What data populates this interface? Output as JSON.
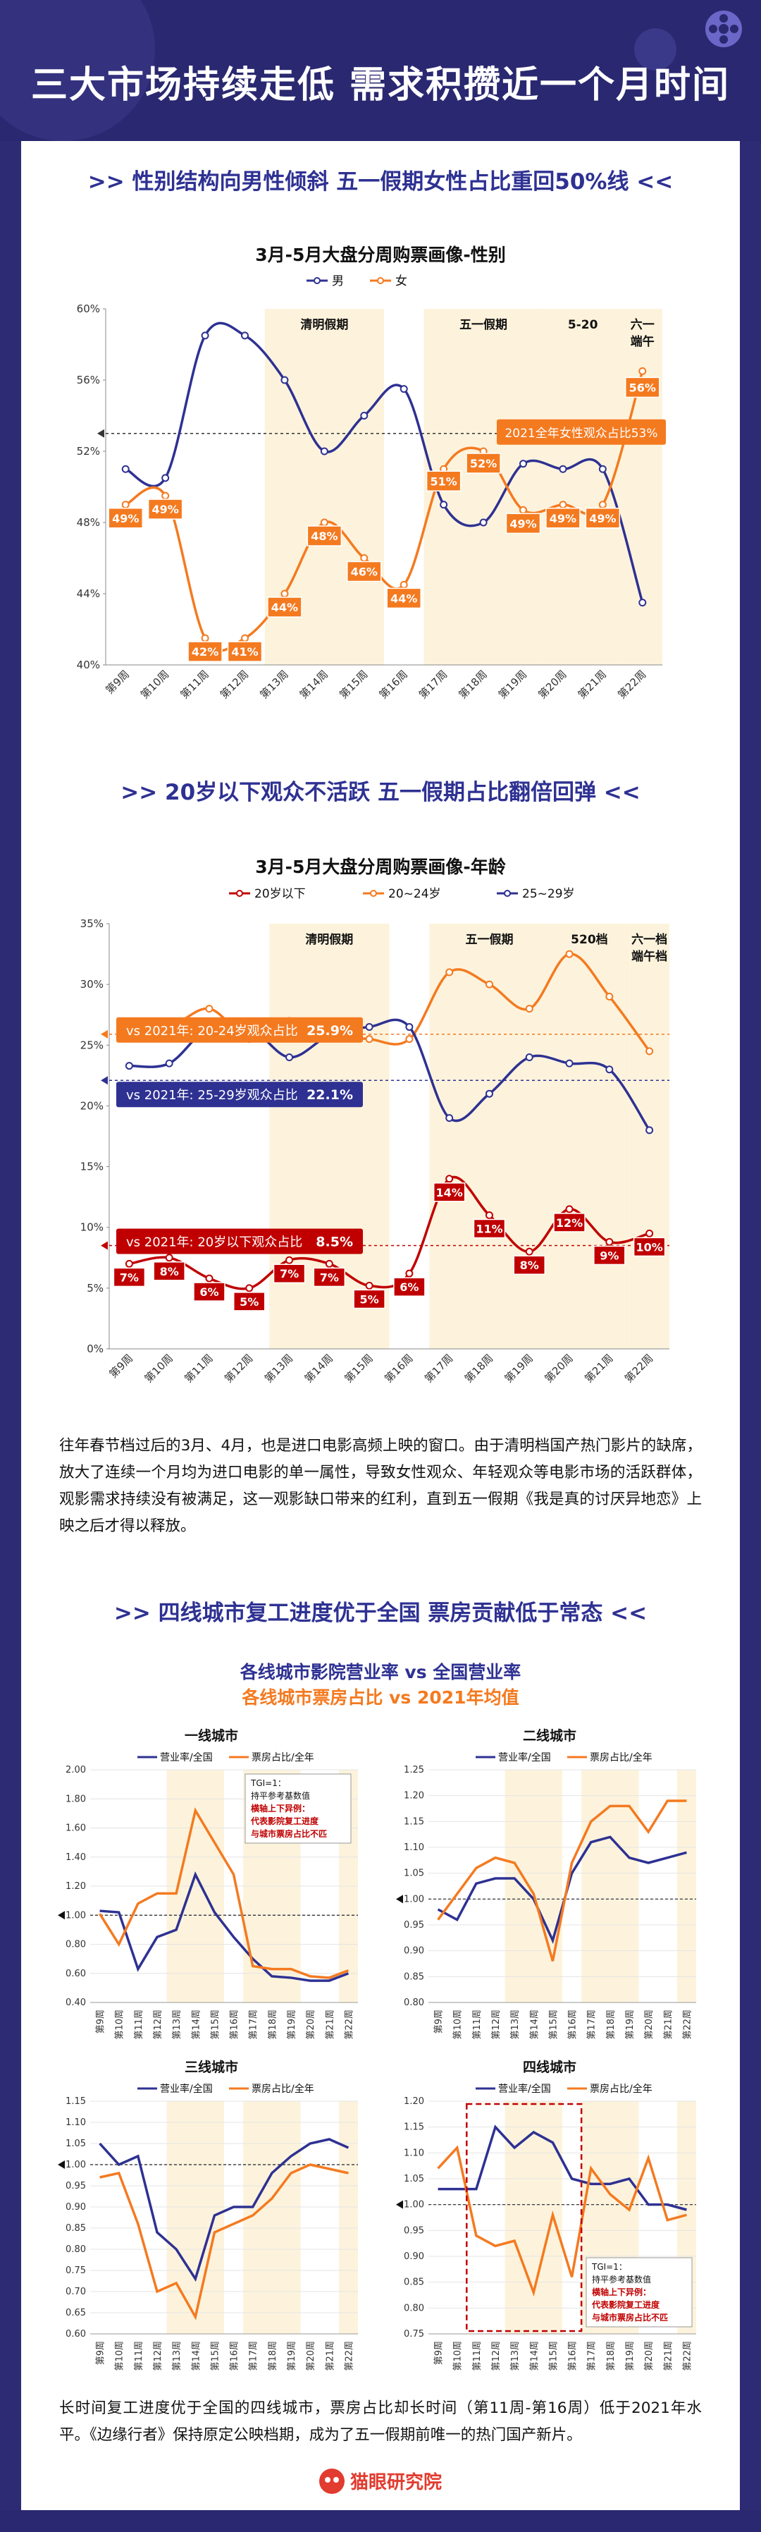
{
  "page_title": "三大市场持续走低 需求积攒近一个月时间",
  "sections": {
    "s1_title": ">> 性别结构向男性倾斜 五一假期女性占比重回50%线 <<",
    "s2_title": ">> 20岁以下观众不活跃 五一假期占比翻倍回弹 <<",
    "s3_title": ">> 四线城市复工进度优于全国 票房贡献低于常态 <<"
  },
  "paragraphs": {
    "p1": "往年春节档过后的3月、4月，也是进口电影高频上映的窗口。由于清明档国产热门影片的缺席，放大了连续一个月均为进口电影的单一属性，导致女性观众、年轻观众等电影市场的活跃群体，观影需求持续没有被满足，这一观影缺口带来的红利，直到五一假期《我是真的讨厌异地恋》上映之后才得以释放。",
    "p2": "长时间复工进度优于全国的四线城市，票房占比却长时间（第11周-第16周）低于2021年水平。《边缘行者》保持原定公映档期，成为了五一假期前唯一的热门国产新片。"
  },
  "multi_title_line1": "各线城市影院营业率 vs 全国营业率",
  "multi_title_line2": "各线城市票房占比 vs 2021年均值",
  "logo_text": "猫眼研究院",
  "colors": {
    "navy": "#2e3192",
    "orange": "#f47a20",
    "red": "#c00000",
    "holiday": "#fdf3dc"
  },
  "chart_data": [
    {
      "id": "gender",
      "type": "line",
      "title": "3月-5月大盘分周购票画像-性别",
      "categories": [
        "第9周",
        "第10周",
        "第11周",
        "第12周",
        "第13周",
        "第14周",
        "第15周",
        "第16周",
        "第17周",
        "第18周",
        "第19周",
        "第20周",
        "第21周",
        "第22周"
      ],
      "series": [
        {
          "name": "男",
          "color": "#2e3192",
          "values": [
            51,
            50.5,
            58.5,
            58.5,
            56,
            52,
            54,
            55.5,
            49,
            48,
            51.3,
            51,
            51,
            43.5
          ]
        },
        {
          "name": "女",
          "color": "#f47a20",
          "values": [
            49,
            49.5,
            41.5,
            41.5,
            44,
            48,
            46,
            44.5,
            51,
            52,
            48.7,
            49,
            49,
            56.5
          ]
        }
      ],
      "data_labels": [
        "49%",
        "49%",
        "42%",
        "41%",
        "44%",
        "48%",
        "46%",
        "44%",
        "51%",
        "52%",
        "49%",
        "49%",
        "49%",
        "56%"
      ],
      "ylim": [
        40,
        60
      ],
      "yticks": [
        "40%",
        "44%",
        "48%",
        "52%",
        "56%",
        "60%"
      ],
      "periods": [
        {
          "label": "清明假期",
          "from": 4,
          "to": 6
        },
        {
          "label": "五一假期",
          "from": 8,
          "to": 10
        },
        {
          "label": "5-20",
          "from": 11,
          "to": 12
        },
        {
          "label": "六一\n端午",
          "from": 13,
          "to": 13
        }
      ],
      "reference": {
        "value": 53,
        "label": "2021全年女性观众占比53%"
      }
    },
    {
      "id": "age",
      "type": "line",
      "title": "3月-5月大盘分周购票画像-年龄",
      "categories": [
        "第9周",
        "第10周",
        "第11周",
        "第12周",
        "第13周",
        "第14周",
        "第15周",
        "第16周",
        "第17周",
        "第18周",
        "第19周",
        "第20周",
        "第21周",
        "第22周"
      ],
      "series": [
        {
          "name": "20岁以下",
          "color": "#c00000",
          "values": [
            7,
            7.5,
            5.8,
            5,
            7.3,
            7,
            5.2,
            6.2,
            14,
            11,
            8,
            11.5,
            8.8,
            9.5
          ]
        },
        {
          "name": "20~24岁",
          "color": "#f47a20",
          "values": [
            26.5,
            26.5,
            28,
            25.5,
            27,
            26,
            25.5,
            25.5,
            31,
            30,
            28,
            32.5,
            29,
            24.5
          ]
        },
        {
          "name": "25~29岁",
          "color": "#2e3192",
          "values": [
            23.3,
            23.5,
            26.5,
            26.5,
            24,
            25.8,
            26.5,
            26.5,
            19,
            21,
            24,
            23.5,
            23,
            18
          ]
        }
      ],
      "data_labels": [
        "7%",
        "8%",
        "6%",
        "5%",
        "7%",
        "7%",
        "5%",
        "6%",
        "14%",
        "11%",
        "8%",
        "12%",
        "9%",
        "10%"
      ],
      "ylim": [
        0,
        35
      ],
      "yticks": [
        "0%",
        "5%",
        "10%",
        "15%",
        "20%",
        "25%",
        "30%",
        "35%"
      ],
      "periods": [
        {
          "label": "清明假期",
          "from": 4,
          "to": 6
        },
        {
          "label": "五一假期",
          "from": 8,
          "to": 10
        },
        {
          "label": "520档",
          "from": 11,
          "to": 12
        },
        {
          "label": "六一档\n端午档",
          "from": 13,
          "to": 13
        }
      ],
      "references": [
        {
          "value": 25.9,
          "color": "#f47a20",
          "label": "vs 2021年: 20-24岁观众占比",
          "pct": "25.9%"
        },
        {
          "value": 22.1,
          "color": "#2e3192",
          "label": "vs 2021年: 25-29岁观众占比",
          "pct": "22.1%"
        },
        {
          "value": 8.5,
          "color": "#c00000",
          "label": "vs 2021年: 20岁以下观众占比",
          "pct": "8.5%"
        }
      ]
    },
    {
      "id": "tier1",
      "type": "line",
      "title": "一线城市",
      "categories": [
        "第9周",
        "第10周",
        "第11周",
        "第12周",
        "第13周",
        "第14周",
        "第15周",
        "第16周",
        "第17周",
        "第18周",
        "第19周",
        "第20周",
        "第21周",
        "第22周"
      ],
      "series": [
        {
          "name": "营业率/全国",
          "color": "#2e3192",
          "values": [
            1.03,
            1.02,
            0.63,
            0.85,
            0.9,
            1.28,
            1.02,
            0.85,
            0.7,
            0.58,
            0.57,
            0.55,
            0.55,
            0.6
          ]
        },
        {
          "name": "票房占比/全年",
          "color": "#f47a20",
          "values": [
            1.01,
            0.8,
            1.08,
            1.15,
            1.15,
            1.72,
            1.5,
            1.28,
            0.65,
            0.63,
            0.63,
            0.58,
            0.57,
            0.62
          ]
        }
      ],
      "ylim": [
        0.4,
        2.0
      ],
      "yticks": [
        "0.40",
        "0.60",
        "0.80",
        "1.00",
        "1.20",
        "1.40",
        "1.60",
        "1.80",
        "2.00"
      ],
      "note": [
        "TGI=1：",
        "持平参考基数值",
        "横轴上下异例：",
        "代表影院复工进度",
        "与城市票房占比不匹"
      ]
    },
    {
      "id": "tier2",
      "type": "line",
      "title": "二线城市",
      "categories": [
        "第9周",
        "第10周",
        "第11周",
        "第12周",
        "第13周",
        "第14周",
        "第15周",
        "第16周",
        "第17周",
        "第18周",
        "第19周",
        "第20周",
        "第21周",
        "第22周"
      ],
      "series": [
        {
          "name": "营业率/全国",
          "color": "#2e3192",
          "values": [
            0.98,
            0.96,
            1.03,
            1.04,
            1.04,
            1.0,
            0.92,
            1.05,
            1.11,
            1.12,
            1.08,
            1.07,
            1.08,
            1.09
          ]
        },
        {
          "name": "票房占比/全年",
          "color": "#f47a20",
          "values": [
            0.96,
            1.01,
            1.06,
            1.08,
            1.07,
            1.01,
            0.88,
            1.07,
            1.15,
            1.18,
            1.18,
            1.13,
            1.19,
            1.19
          ]
        }
      ],
      "ylim": [
        0.8,
        1.25
      ],
      "yticks": [
        "0.80",
        "0.85",
        "0.90",
        "0.95",
        "1.00",
        "1.05",
        "1.10",
        "1.15",
        "1.20",
        "1.25"
      ]
    },
    {
      "id": "tier3",
      "type": "line",
      "title": "三线城市",
      "categories": [
        "第9周",
        "第10周",
        "第11周",
        "第12周",
        "第13周",
        "第14周",
        "第15周",
        "第16周",
        "第17周",
        "第18周",
        "第19周",
        "第20周",
        "第21周",
        "第22周"
      ],
      "series": [
        {
          "name": "营业率/全国",
          "color": "#2e3192",
          "values": [
            1.05,
            1.0,
            1.02,
            0.84,
            0.8,
            0.73,
            0.88,
            0.9,
            0.9,
            0.98,
            1.02,
            1.05,
            1.06,
            1.04
          ]
        },
        {
          "name": "票房占比/全年",
          "color": "#f47a20",
          "values": [
            0.97,
            0.98,
            0.86,
            0.7,
            0.72,
            0.64,
            0.84,
            0.86,
            0.88,
            0.92,
            0.98,
            1.0,
            0.99,
            0.98
          ]
        }
      ],
      "ylim": [
        0.6,
        1.15
      ],
      "yticks": [
        "0.60",
        "0.65",
        "0.70",
        "0.75",
        "0.80",
        "0.85",
        "0.90",
        "0.95",
        "1.00",
        "1.05",
        "1.10",
        "1.15"
      ]
    },
    {
      "id": "tier4",
      "type": "line",
      "title": "四线城市",
      "categories": [
        "第9周",
        "第10周",
        "第11周",
        "第12周",
        "第13周",
        "第14周",
        "第15周",
        "第16周",
        "第17周",
        "第18周",
        "第19周",
        "第20周",
        "第21周",
        "第22周"
      ],
      "series": [
        {
          "name": "营业率/全国",
          "color": "#2e3192",
          "values": [
            1.03,
            1.03,
            1.03,
            1.15,
            1.11,
            1.14,
            1.12,
            1.05,
            1.04,
            1.04,
            1.05,
            1.0,
            1.0,
            0.99
          ]
        },
        {
          "name": "票房占比/全年",
          "color": "#f47a20",
          "values": [
            1.07,
            1.11,
            0.94,
            0.92,
            0.93,
            0.83,
            0.98,
            0.86,
            1.07,
            1.02,
            0.99,
            1.09,
            0.97,
            0.98
          ]
        }
      ],
      "ylim": [
        0.75,
        1.2
      ],
      "yticks": [
        "0.75",
        "0.80",
        "0.85",
        "0.90",
        "0.95",
        "1.00",
        "1.05",
        "1.10",
        "1.15",
        "1.20"
      ],
      "note": [
        "TGI=1：",
        "持平参考基数值",
        "横轴上下异例：",
        "代表影院复工进度",
        "与城市票房占比不匹"
      ]
    }
  ]
}
